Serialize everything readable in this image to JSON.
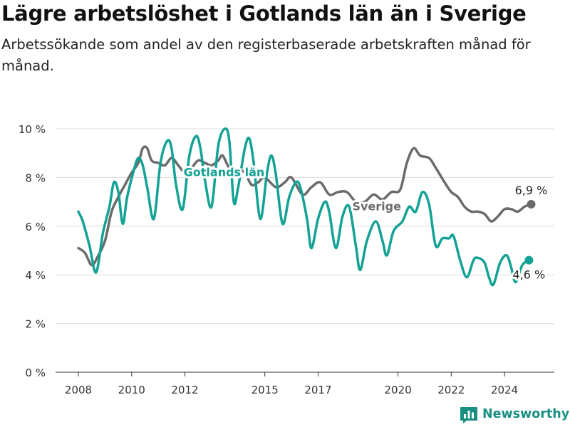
{
  "header": {
    "title": "Lägre arbetslöshet i Gotlands län än i Sverige",
    "subtitle": "Arbetssökande som andel av den registerbaserade arbetskraften månad för månad."
  },
  "brand": {
    "name": "Newsworthy",
    "icon": "bar-chart-logo-icon",
    "color": "#1a8f82"
  },
  "chart_data": {
    "type": "line",
    "title": "Lägre arbetslöshet i Gotlands län än i Sverige",
    "subtitle": "Arbetssökande som andel av den registerbaserade arbetskraften månad för månad.",
    "xlabel": "",
    "ylabel": "",
    "ylim": [
      0,
      10.5
    ],
    "yticks": [
      0,
      2,
      4,
      6,
      8,
      10
    ],
    "ytick_labels": [
      "0 %",
      "2 %",
      "4 %",
      "6 %",
      "8 %",
      "10 %"
    ],
    "xticks": [
      2008,
      2010,
      2012,
      2015,
      2017,
      2020,
      2022,
      2024
    ],
    "xtick_labels": [
      "2008",
      "2010",
      "2012",
      "2015",
      "2017",
      "2020",
      "2022",
      "2024"
    ],
    "grid": "horizontal",
    "legend": "inline labels",
    "series": [
      {
        "name": "Sverige",
        "color": "#6b6b6b",
        "end_label": "6,9 %",
        "points": [
          [
            "2008-01",
            5.1
          ],
          [
            "2008-04",
            4.9
          ],
          [
            "2008-07",
            4.4
          ],
          [
            "2008-10",
            4.8
          ],
          [
            "2009-01",
            5.4
          ],
          [
            "2009-04",
            6.6
          ],
          [
            "2009-07",
            7.2
          ],
          [
            "2009-10",
            7.7
          ],
          [
            "2010-01",
            8.2
          ],
          [
            "2010-04",
            8.6
          ],
          [
            "2010-06",
            9.2
          ],
          [
            "2010-08",
            9.2
          ],
          [
            "2010-10",
            8.7
          ],
          [
            "2011-01",
            8.6
          ],
          [
            "2011-04",
            8.5
          ],
          [
            "2011-07",
            8.8
          ],
          [
            "2011-10",
            8.5
          ],
          [
            "2012-01",
            8.2
          ],
          [
            "2012-04",
            8.4
          ],
          [
            "2012-07",
            8.7
          ],
          [
            "2012-10",
            8.6
          ],
          [
            "2013-01",
            8.5
          ],
          [
            "2013-04",
            8.7
          ],
          [
            "2013-06",
            8.9
          ],
          [
            "2013-09",
            8.4
          ],
          [
            "2014-01",
            8.3
          ],
          [
            "2014-04",
            8.2
          ],
          [
            "2014-07",
            7.7
          ],
          [
            "2014-10",
            7.8
          ],
          [
            "2015-01",
            8.0
          ],
          [
            "2015-06",
            7.6
          ],
          [
            "2015-10",
            7.8
          ],
          [
            "2016-01",
            8.0
          ],
          [
            "2016-06",
            7.3
          ],
          [
            "2016-10",
            7.6
          ],
          [
            "2017-02",
            7.8
          ],
          [
            "2017-06",
            7.3
          ],
          [
            "2017-10",
            7.4
          ],
          [
            "2018-02",
            7.4
          ],
          [
            "2018-06",
            7.0
          ],
          [
            "2018-10",
            7.0
          ],
          [
            "2019-02",
            7.3
          ],
          [
            "2019-06",
            7.1
          ],
          [
            "2019-10",
            7.4
          ],
          [
            "2020-02",
            7.5
          ],
          [
            "2020-05",
            8.6
          ],
          [
            "2020-08",
            9.2
          ],
          [
            "2020-11",
            8.9
          ],
          [
            "2021-03",
            8.8
          ],
          [
            "2021-06",
            8.4
          ],
          [
            "2021-10",
            7.8
          ],
          [
            "2022-01",
            7.4
          ],
          [
            "2022-04",
            7.2
          ],
          [
            "2022-07",
            6.8
          ],
          [
            "2022-10",
            6.6
          ],
          [
            "2023-01",
            6.6
          ],
          [
            "2023-04",
            6.5
          ],
          [
            "2023-07",
            6.2
          ],
          [
            "2023-10",
            6.4
          ],
          [
            "2024-01",
            6.7
          ],
          [
            "2024-04",
            6.7
          ],
          [
            "2024-07",
            6.6
          ],
          [
            "2024-10",
            6.8
          ],
          [
            "2025-01",
            6.9
          ]
        ]
      },
      {
        "name": "Gotlands län",
        "color": "#13a294",
        "end_label": "4,6 %",
        "points": [
          [
            "2008-01",
            6.6
          ],
          [
            "2008-03",
            6.2
          ],
          [
            "2008-06",
            5.2
          ],
          [
            "2008-09",
            4.1
          ],
          [
            "2008-12",
            5.7
          ],
          [
            "2009-03",
            6.8
          ],
          [
            "2009-05",
            7.8
          ],
          [
            "2009-07",
            7.4
          ],
          [
            "2009-09",
            6.1
          ],
          [
            "2009-11",
            7.2
          ],
          [
            "2010-02",
            8.3
          ],
          [
            "2010-04",
            8.8
          ],
          [
            "2010-06",
            8.5
          ],
          [
            "2010-08",
            7.6
          ],
          [
            "2010-11",
            6.3
          ],
          [
            "2011-02",
            8.6
          ],
          [
            "2011-05",
            9.5
          ],
          [
            "2011-07",
            9.2
          ],
          [
            "2011-09",
            7.7
          ],
          [
            "2011-12",
            6.7
          ],
          [
            "2012-03",
            8.9
          ],
          [
            "2012-06",
            9.7
          ],
          [
            "2012-08",
            9.2
          ],
          [
            "2012-10",
            7.9
          ],
          [
            "2013-01",
            6.8
          ],
          [
            "2013-04",
            9.3
          ],
          [
            "2013-07",
            10.0
          ],
          [
            "2013-09",
            9.5
          ],
          [
            "2013-11",
            7.0
          ],
          [
            "2014-01",
            7.6
          ],
          [
            "2014-04",
            9.2
          ],
          [
            "2014-06",
            9.6
          ],
          [
            "2014-08",
            8.6
          ],
          [
            "2014-11",
            6.3
          ],
          [
            "2015-02",
            8.2
          ],
          [
            "2015-04",
            8.9
          ],
          [
            "2015-06",
            8.1
          ],
          [
            "2015-09",
            6.1
          ],
          [
            "2015-12",
            7.2
          ],
          [
            "2016-03",
            7.8
          ],
          [
            "2016-05",
            7.6
          ],
          [
            "2016-08",
            6.3
          ],
          [
            "2016-10",
            5.1
          ],
          [
            "2017-01",
            6.3
          ],
          [
            "2017-04",
            7.0
          ],
          [
            "2017-06",
            6.6
          ],
          [
            "2017-09",
            5.1
          ],
          [
            "2017-12",
            6.4
          ],
          [
            "2018-03",
            6.8
          ],
          [
            "2018-06",
            5.2
          ],
          [
            "2018-08",
            4.2
          ],
          [
            "2018-11",
            5.4
          ],
          [
            "2019-03",
            6.2
          ],
          [
            "2019-06",
            5.4
          ],
          [
            "2019-08",
            4.8
          ],
          [
            "2019-11",
            5.8
          ],
          [
            "2020-03",
            6.2
          ],
          [
            "2020-06",
            6.8
          ],
          [
            "2020-09",
            6.6
          ],
          [
            "2020-12",
            7.4
          ],
          [
            "2021-03",
            6.9
          ],
          [
            "2021-06",
            5.2
          ],
          [
            "2021-09",
            5.5
          ],
          [
            "2021-12",
            5.5
          ],
          [
            "2022-02",
            5.6
          ],
          [
            "2022-05",
            4.6
          ],
          [
            "2022-08",
            3.9
          ],
          [
            "2022-11",
            4.6
          ],
          [
            "2023-01",
            4.7
          ],
          [
            "2023-04",
            4.5
          ],
          [
            "2023-06",
            3.9
          ],
          [
            "2023-08",
            3.6
          ],
          [
            "2023-11",
            4.5
          ],
          [
            "2024-02",
            4.8
          ],
          [
            "2024-04",
            4.3
          ],
          [
            "2024-06",
            3.7
          ],
          [
            "2024-09",
            4.4
          ],
          [
            "2024-12",
            4.6
          ]
        ]
      }
    ]
  }
}
